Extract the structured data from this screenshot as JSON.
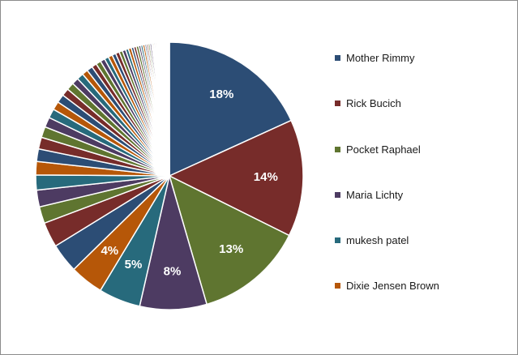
{
  "chart_data": {
    "type": "pie",
    "title": "",
    "slices": [
      {
        "name": "Mother Rimmy",
        "value": 18,
        "label": "18%",
        "color": "#2c4d75"
      },
      {
        "name": "Rick Bucich",
        "value": 14,
        "label": "14%",
        "color": "#772c2a"
      },
      {
        "name": "Pocket Raphael",
        "value": 13,
        "label": "13%",
        "color": "#5f7530"
      },
      {
        "name": "Maria Lichty",
        "value": 8,
        "label": "8%",
        "color": "#4d3b62"
      },
      {
        "name": "mukesh patel",
        "value": 5,
        "label": "5%",
        "color": "#276a7c"
      },
      {
        "name": "Dixie Jensen Brown",
        "value": 4,
        "label": "4%",
        "color": "#b65708"
      },
      {
        "name": "",
        "value": 3.5,
        "label": "",
        "color": "#2c4d75"
      },
      {
        "name": "",
        "value": 3,
        "label": "",
        "color": "#772c2a"
      },
      {
        "name": "",
        "value": 2,
        "label": "",
        "color": "#5f7530"
      },
      {
        "name": "",
        "value": 2,
        "label": "",
        "color": "#4d3b62"
      },
      {
        "name": "",
        "value": 1.8,
        "label": "",
        "color": "#276a7c"
      },
      {
        "name": "",
        "value": 1.6,
        "label": "",
        "color": "#b65708"
      },
      {
        "name": "",
        "value": 1.5,
        "label": "",
        "color": "#2c4d75"
      },
      {
        "name": "",
        "value": 1.4,
        "label": "",
        "color": "#772c2a"
      },
      {
        "name": "",
        "value": 1.3,
        "label": "",
        "color": "#5f7530"
      },
      {
        "name": "",
        "value": 1.2,
        "label": "",
        "color": "#4d3b62"
      },
      {
        "name": "",
        "value": 1.1,
        "label": "",
        "color": "#276a7c"
      },
      {
        "name": "",
        "value": 1.0,
        "label": "",
        "color": "#b65708"
      },
      {
        "name": "",
        "value": 1.0,
        "label": "",
        "color": "#2c4d75"
      },
      {
        "name": "",
        "value": 0.9,
        "label": "",
        "color": "#772c2a"
      },
      {
        "name": "",
        "value": 0.9,
        "label": "",
        "color": "#5f7530"
      },
      {
        "name": "",
        "value": 0.8,
        "label": "",
        "color": "#4d3b62"
      },
      {
        "name": "",
        "value": 0.8,
        "label": "",
        "color": "#276a7c"
      },
      {
        "name": "",
        "value": 0.7,
        "label": "",
        "color": "#b65708"
      },
      {
        "name": "",
        "value": 0.7,
        "label": "",
        "color": "#2c4d75"
      },
      {
        "name": "",
        "value": 0.6,
        "label": "",
        "color": "#772c2a"
      },
      {
        "name": "",
        "value": 0.6,
        "label": "",
        "color": "#5f7530"
      },
      {
        "name": "",
        "value": 0.55,
        "label": "",
        "color": "#4d3b62"
      },
      {
        "name": "",
        "value": 0.5,
        "label": "",
        "color": "#276a7c"
      },
      {
        "name": "",
        "value": 0.5,
        "label": "",
        "color": "#b65708"
      },
      {
        "name": "",
        "value": 0.45,
        "label": "",
        "color": "#2c4d75"
      },
      {
        "name": "",
        "value": 0.45,
        "label": "",
        "color": "#772c2a"
      },
      {
        "name": "",
        "value": 0.4,
        "label": "",
        "color": "#5f7530"
      },
      {
        "name": "",
        "value": 0.4,
        "label": "",
        "color": "#4d3b62"
      },
      {
        "name": "",
        "value": 0.35,
        "label": "",
        "color": "#276a7c"
      },
      {
        "name": "",
        "value": 0.35,
        "label": "",
        "color": "#b65708"
      },
      {
        "name": "",
        "value": 0.3,
        "label": "",
        "color": "#2c4d75"
      },
      {
        "name": "",
        "value": 0.3,
        "label": "",
        "color": "#772c2a"
      },
      {
        "name": "",
        "value": 0.3,
        "label": "",
        "color": "#5f7530"
      },
      {
        "name": "",
        "value": 0.25,
        "label": "",
        "color": "#4d3b62"
      },
      {
        "name": "",
        "value": 0.25,
        "label": "",
        "color": "#276a7c"
      },
      {
        "name": "",
        "value": 0.25,
        "label": "",
        "color": "#b65708"
      },
      {
        "name": "",
        "value": 0.2,
        "label": "",
        "color": "#2c4d75"
      },
      {
        "name": "",
        "value": 0.2,
        "label": "",
        "color": "#772c2a"
      },
      {
        "name": "",
        "value": 0.2,
        "label": "",
        "color": "#5f7530"
      },
      {
        "name": "",
        "value": 0.2,
        "label": "",
        "color": "#4d3b62"
      },
      {
        "name": "",
        "value": 0.15,
        "label": "",
        "color": "#276a7c"
      },
      {
        "name": "",
        "value": 0.15,
        "label": "",
        "color": "#b65708"
      },
      {
        "name": "",
        "value": 0.15,
        "label": "",
        "color": "#2c4d75"
      },
      {
        "name": "",
        "value": 0.15,
        "label": "",
        "color": "#772c2a"
      },
      {
        "name": "",
        "value": 0.1,
        "label": "",
        "color": "#5f7530"
      },
      {
        "name": "",
        "value": 0.1,
        "label": "",
        "color": "#4d3b62"
      },
      {
        "name": "",
        "value": 0.1,
        "label": "",
        "color": "#276a7c"
      },
      {
        "name": "",
        "value": 0.1,
        "label": "",
        "color": "#b65708"
      },
      {
        "name": "",
        "value": 0.1,
        "label": "",
        "color": "#2c4d75"
      },
      {
        "name": "",
        "value": 0.1,
        "label": "",
        "color": "#772c2a"
      },
      {
        "name": "",
        "value": 0.08,
        "label": "",
        "color": "#5f7530"
      },
      {
        "name": "",
        "value": 0.08,
        "label": "",
        "color": "#4d3b62"
      },
      {
        "name": "",
        "value": 0.08,
        "label": "",
        "color": "#276a7c"
      },
      {
        "name": "",
        "value": 0.08,
        "label": "",
        "color": "#b65708"
      },
      {
        "name": "",
        "value": 0.06,
        "label": "",
        "color": "#2c4d75"
      },
      {
        "name": "",
        "value": 0.06,
        "label": "",
        "color": "#772c2a"
      },
      {
        "name": "",
        "value": 0.06,
        "label": "",
        "color": "#5f7530"
      },
      {
        "name": "",
        "value": 0.06,
        "label": "",
        "color": "#4d3b62"
      },
      {
        "name": "",
        "value": 0.05,
        "label": "",
        "color": "#276a7c"
      },
      {
        "name": "",
        "value": 0.05,
        "label": "",
        "color": "#b65708"
      },
      {
        "name": "",
        "value": 0.05,
        "label": "",
        "color": "#2c4d75"
      },
      {
        "name": "",
        "value": 0.05,
        "label": "",
        "color": "#772c2a"
      },
      {
        "name": "",
        "value": 0.04,
        "label": "",
        "color": "#5f7530"
      },
      {
        "name": "",
        "value": 0.04,
        "label": "",
        "color": "#4d3b62"
      },
      {
        "name": "",
        "value": 0.04,
        "label": "",
        "color": "#276a7c"
      },
      {
        "name": "",
        "value": 0.04,
        "label": "",
        "color": "#b65708"
      }
    ],
    "legend": {
      "placement": "right",
      "entries": [
        {
          "label": "Mother Rimmy",
          "color": "#2c4d75"
        },
        {
          "label": "Rick Bucich",
          "color": "#772c2a"
        },
        {
          "label": "Pocket Raphael",
          "color": "#5f7530"
        },
        {
          "label": "Maria Lichty",
          "color": "#4d3b62"
        },
        {
          "label": "mukesh patel",
          "color": "#276a7c"
        },
        {
          "label": "Dixie Jensen Brown",
          "color": "#b65708"
        }
      ]
    }
  }
}
